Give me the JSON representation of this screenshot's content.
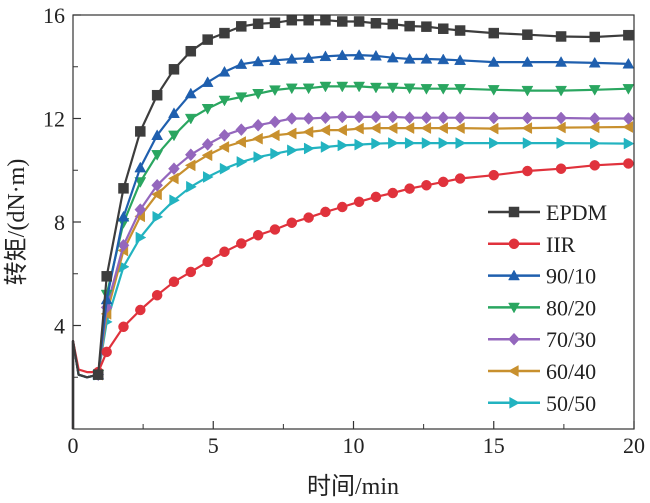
{
  "chart_data": {
    "type": "line",
    "xlabel": "时间/min",
    "ylabel": "转矩/(dN·m)",
    "xlim": [
      0,
      20
    ],
    "ylim": [
      0,
      16
    ],
    "xticks": [
      "0",
      "5",
      "10",
      "15",
      "20"
    ],
    "yticks": [
      "4",
      "8",
      "12",
      "16"
    ],
    "grid": false,
    "legend_position": "bottom-right",
    "x": [
      0,
      0.2,
      0.5,
      0.9,
      1.2,
      1.8,
      2.4,
      3.0,
      3.6,
      4.2,
      4.8,
      5.4,
      6.0,
      6.6,
      7.2,
      7.8,
      8.4,
      9.0,
      9.6,
      10.2,
      10.8,
      11.4,
      12.0,
      12.6,
      13.2,
      13.8,
      15.0,
      16.2,
      17.4,
      18.6,
      19.8
    ],
    "series": [
      {
        "name": "EPDM",
        "color": "#3d3d3d",
        "marker": "square",
        "values": [
          3.4,
          2.1,
          2.0,
          2.1,
          5.9,
          9.3,
          11.5,
          12.9,
          13.9,
          14.6,
          15.05,
          15.3,
          15.56,
          15.66,
          15.7,
          15.8,
          15.8,
          15.8,
          15.75,
          15.75,
          15.68,
          15.65,
          15.57,
          15.55,
          15.47,
          15.4,
          15.3,
          15.24,
          15.17,
          15.15,
          15.22
        ]
      },
      {
        "name": "IIR",
        "color": "#e0323c",
        "marker": "circle",
        "values": [
          3.4,
          2.3,
          2.2,
          2.2,
          2.98,
          3.95,
          4.6,
          5.17,
          5.69,
          6.07,
          6.46,
          6.85,
          7.17,
          7.49,
          7.71,
          7.97,
          8.17,
          8.39,
          8.58,
          8.78,
          8.97,
          9.12,
          9.29,
          9.42,
          9.55,
          9.68,
          9.81,
          9.97,
          10.06,
          10.19,
          10.26
        ]
      },
      {
        "name": "90/10",
        "color": "#1f5fae",
        "marker": "triangle-up",
        "values": [
          3.4,
          2.1,
          2.0,
          2.1,
          5.0,
          8.2,
          10.1,
          11.35,
          12.2,
          12.96,
          13.4,
          13.8,
          14.1,
          14.2,
          14.25,
          14.3,
          14.33,
          14.4,
          14.44,
          14.45,
          14.42,
          14.35,
          14.3,
          14.3,
          14.28,
          14.25,
          14.18,
          14.18,
          14.18,
          14.15,
          14.11
        ]
      },
      {
        "name": "80/20",
        "color": "#2aa660",
        "marker": "triangle-down",
        "values": [
          3.4,
          2.1,
          2.0,
          2.1,
          5.2,
          7.97,
          9.55,
          10.6,
          11.35,
          12.0,
          12.38,
          12.7,
          12.83,
          12.96,
          13.1,
          13.17,
          13.17,
          13.24,
          13.24,
          13.24,
          13.2,
          13.2,
          13.17,
          13.15,
          13.15,
          13.15,
          13.11,
          13.08,
          13.08,
          13.11,
          13.15
        ]
      },
      {
        "name": "70/30",
        "color": "#9467bd",
        "marker": "diamond",
        "values": [
          3.4,
          2.1,
          2.0,
          2.1,
          4.7,
          7.1,
          8.48,
          9.42,
          10.06,
          10.6,
          11.0,
          11.35,
          11.57,
          11.74,
          11.87,
          12.0,
          12.0,
          12.03,
          12.06,
          12.06,
          12.06,
          12.06,
          12.03,
          12.03,
          12.03,
          12.03,
          12.02,
          12.02,
          12.02,
          12.0,
          12.0
        ]
      },
      {
        "name": "60/40",
        "color": "#c8902e",
        "marker": "triangle-left",
        "values": [
          3.4,
          2.1,
          2.0,
          2.1,
          4.45,
          6.9,
          8.22,
          9.07,
          9.68,
          10.19,
          10.58,
          10.9,
          11.09,
          11.22,
          11.35,
          11.42,
          11.48,
          11.55,
          11.55,
          11.61,
          11.63,
          11.63,
          11.63,
          11.63,
          11.63,
          11.63,
          11.61,
          11.63,
          11.65,
          11.66,
          11.67
        ]
      },
      {
        "name": "50/50",
        "color": "#22b3c0",
        "marker": "triangle-right",
        "values": [
          3.4,
          2.1,
          2.0,
          2.1,
          4.14,
          6.27,
          7.4,
          8.2,
          8.84,
          9.36,
          9.74,
          10.06,
          10.32,
          10.51,
          10.64,
          10.77,
          10.84,
          10.9,
          10.96,
          10.99,
          11.03,
          11.05,
          11.05,
          11.05,
          11.05,
          11.05,
          11.05,
          11.05,
          11.05,
          11.04,
          11.03
        ]
      }
    ]
  }
}
